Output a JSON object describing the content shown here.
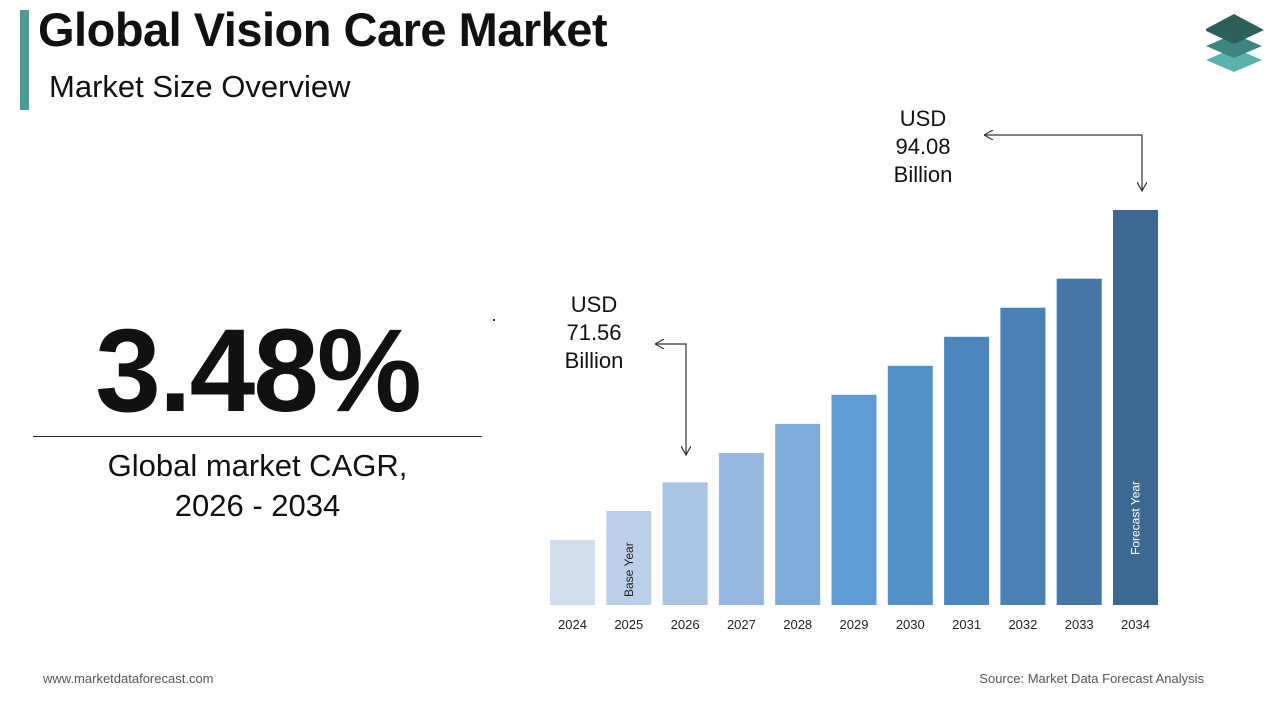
{
  "header": {
    "title": "Global Vision Care Market",
    "subtitle": "Market Size Overview"
  },
  "cagr": {
    "value": "3.48%",
    "label_line1": "Global market CAGR,",
    "label_line2": "2026 - 2034"
  },
  "footer": {
    "website": "www.marketdataforecast.com",
    "source": "Source: Market Data Forecast Analysis"
  },
  "annotations": {
    "start": {
      "line1": "USD",
      "line2": "71.56",
      "line3": "Billion"
    },
    "end": {
      "line1": "USD",
      "line2": "94.08",
      "line3": "Billion"
    }
  },
  "logo": {
    "icon": "stacked-layers-icon",
    "colors": [
      "#2f5f5c",
      "#3d8580",
      "#58b3ab"
    ]
  },
  "chart_data": {
    "type": "bar",
    "categories": [
      "2024",
      "2025",
      "2026",
      "2027",
      "2028",
      "2029",
      "2030",
      "2031",
      "2032",
      "2033",
      "2034"
    ],
    "values": [
      66.8,
      69.2,
      71.56,
      74.0,
      76.4,
      78.8,
      81.2,
      83.6,
      86.0,
      88.4,
      94.08
    ],
    "bar_colors": [
      "#d0dded",
      "#bccfe8",
      "#aac4e4",
      "#97b9e0",
      "#7faadb",
      "#5f9cd5",
      "#5591c9",
      "#4b86bd",
      "#4a80b4",
      "#4676a6",
      "#3d6891"
    ],
    "bar_labels": {
      "2025": "Base Year",
      "2034": "Forecast Year"
    },
    "grid": false,
    "legend": "none"
  }
}
